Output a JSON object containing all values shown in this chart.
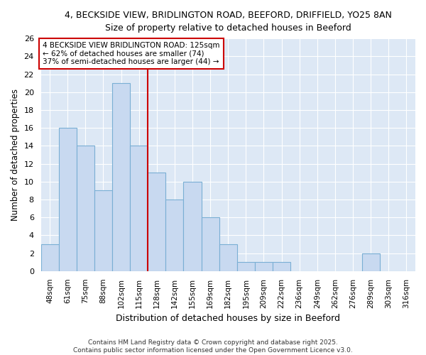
{
  "title_line1": "4, BECKSIDE VIEW, BRIDLINGTON ROAD, BEEFORD, DRIFFIELD, YO25 8AN",
  "title_line2": "Size of property relative to detached houses in Beeford",
  "xlabel": "Distribution of detached houses by size in Beeford",
  "ylabel": "Number of detached properties",
  "categories": [
    "48sqm",
    "61sqm",
    "75sqm",
    "88sqm",
    "102sqm",
    "115sqm",
    "128sqm",
    "142sqm",
    "155sqm",
    "169sqm",
    "182sqm",
    "195sqm",
    "209sqm",
    "222sqm",
    "236sqm",
    "249sqm",
    "262sqm",
    "276sqm",
    "289sqm",
    "303sqm",
    "316sqm"
  ],
  "values": [
    3,
    16,
    14,
    9,
    21,
    14,
    11,
    8,
    10,
    6,
    3,
    1,
    1,
    1,
    0,
    0,
    0,
    0,
    2,
    0,
    0
  ],
  "bar_color": "#c8d9f0",
  "bar_edge_color": "#7aafd4",
  "plot_bg_color": "#dde8f5",
  "fig_bg_color": "#ffffff",
  "grid_color": "#ffffff",
  "vline_x": 6,
  "vline_color": "#cc0000",
  "ylim": [
    0,
    26
  ],
  "yticks": [
    0,
    2,
    4,
    6,
    8,
    10,
    12,
    14,
    16,
    18,
    20,
    22,
    24,
    26
  ],
  "annotation_text": "4 BECKSIDE VIEW BRIDLINGTON ROAD: 125sqm\n← 62% of detached houses are smaller (74)\n37% of semi-detached houses are larger (44) →",
  "annotation_box_color": "#ffffff",
  "annotation_box_edge": "#cc0000",
  "footer": "Contains HM Land Registry data © Crown copyright and database right 2025.\nContains public sector information licensed under the Open Government Licence v3.0."
}
